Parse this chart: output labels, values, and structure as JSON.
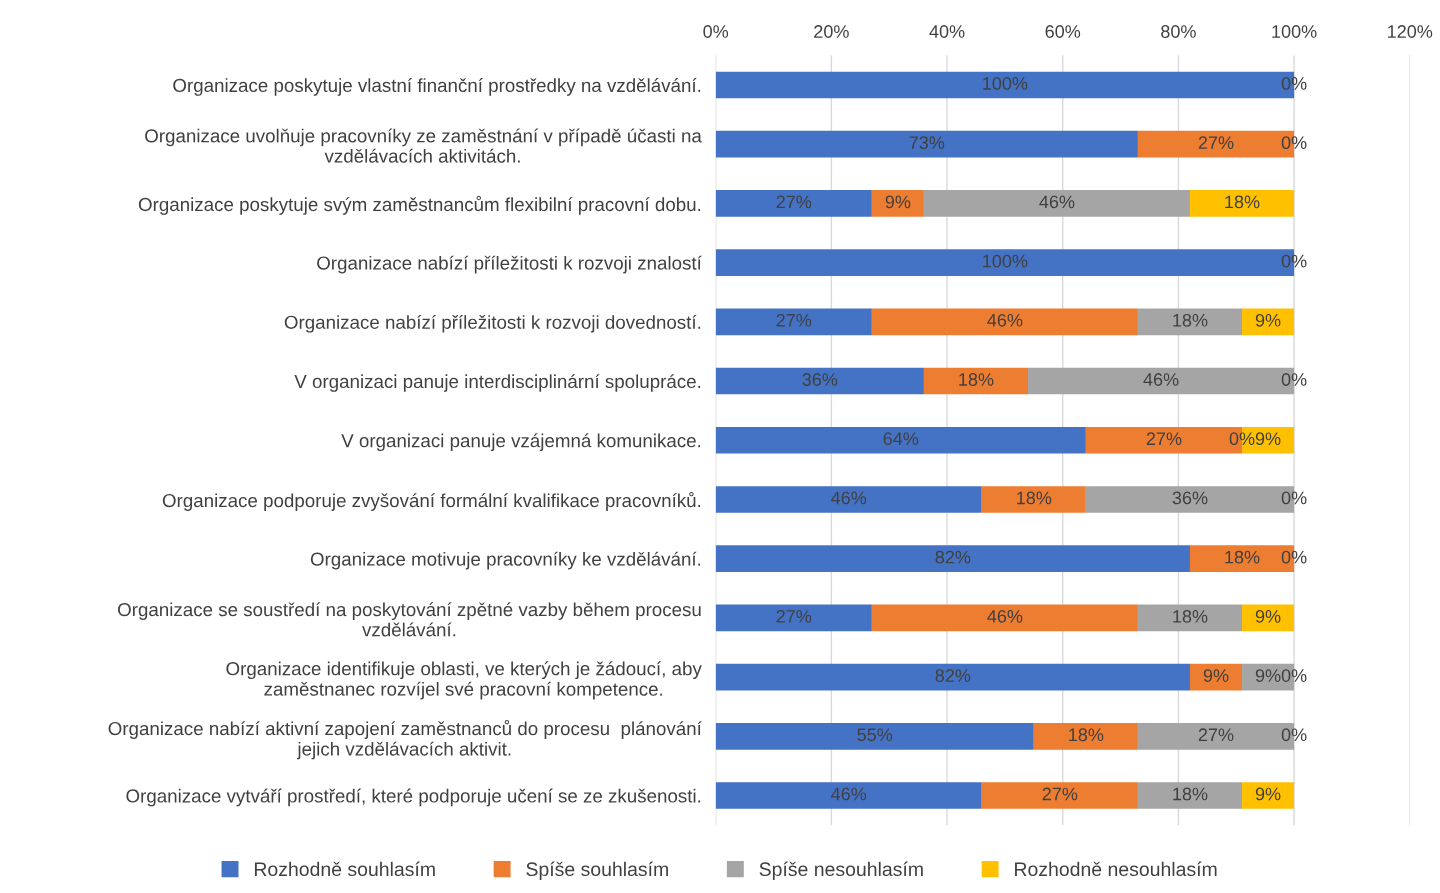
{
  "chart_data": {
    "type": "bar",
    "orientation": "horizontal",
    "stacked": true,
    "categories": [
      "Organizace poskytuje vlastní finanční prostředky na vzdělávání.",
      "Organizace uvolňuje pracovníky ze zaměstnání v případě účasti na\nvzdělávacích aktivitách.",
      "Organizace poskytuje svým zaměstnancům flexibilní pracovní dobu.",
      "Organizace nabízí příležitosti k rozvoji znalostí",
      "Organizace nabízí příležitosti k rozvoji dovedností.",
      "V organizaci panuje interdisciplinární spolupráce.",
      "V organizaci panuje vzájemná komunikace.",
      "Organizace podporuje zvyšování formální kvalifikace pracovníků.",
      "Organizace motivuje pracovníky ke vzdělávání.",
      "Organizace se soustředí na poskytování zpětné vazby během procesu\nvzdělávání.",
      "Organizace identifikuje oblasti, ve kterých je žádoucí, aby\nzaměstnanec rozvíjel své pracovní kompetence.",
      "Organizace nabízí aktivní zapojení zaměstnanců do procesu  plánování\njejich vzdělávacích aktivit.",
      "Organizace vytváří prostředí, které podporuje učení se ze zkušenosti."
    ],
    "series": [
      {
        "name": "Rozhodně souhlasím",
        "color": "#4472c4",
        "values": [
          100,
          73,
          27,
          100,
          27,
          36,
          64,
          46,
          82,
          27,
          82,
          55,
          46
        ],
        "value_labels": [
          "100%",
          "73%",
          "27%",
          "100%",
          "27%",
          "36%",
          "64%",
          "46%",
          "82%",
          "27%",
          "82%",
          "55%",
          "46%"
        ]
      },
      {
        "name": "Spíše souhlasím",
        "color": "#ed7d31",
        "values": [
          0,
          27,
          9,
          0,
          46,
          18,
          27,
          18,
          18,
          46,
          9,
          18,
          27
        ],
        "value_labels": [
          null,
          "27%",
          "9%",
          null,
          "46%",
          "18%",
          "27%",
          "18%",
          "18%",
          "46%",
          "9%",
          "18%",
          "27%"
        ]
      },
      {
        "name": "Spíše nesouhlasím",
        "color": "#a5a5a5",
        "values": [
          0,
          0,
          46,
          0,
          18,
          46,
          0,
          36,
          0,
          18,
          9,
          27,
          18
        ],
        "value_labels": [
          null,
          null,
          "46%",
          null,
          "18%",
          "46%",
          "0%",
          "36%",
          null,
          "18%",
          "9%",
          "27%",
          "18%"
        ]
      },
      {
        "name": "Rozhodně nesouhlasím",
        "color": "#ffc000",
        "values": [
          0,
          0,
          18,
          0,
          9,
          0,
          9,
          0,
          0,
          9,
          0,
          0,
          9
        ],
        "value_labels": [
          "0%",
          "0%",
          "18%",
          "0%",
          "9%",
          "0%",
          "9%",
          "0%",
          "0%",
          "9%",
          "0%",
          "0%",
          "9%"
        ]
      }
    ],
    "xlim": [
      0,
      120
    ],
    "xticks": [
      {
        "value": 0,
        "label": "0%"
      },
      {
        "value": 20,
        "label": "20%"
      },
      {
        "value": 40,
        "label": "40%"
      },
      {
        "value": 60,
        "label": "60%"
      },
      {
        "value": 80,
        "label": "80%"
      },
      {
        "value": 100,
        "label": "100%"
      },
      {
        "value": 120,
        "label": "120%"
      }
    ],
    "grid": "x",
    "legend": "bottom"
  }
}
